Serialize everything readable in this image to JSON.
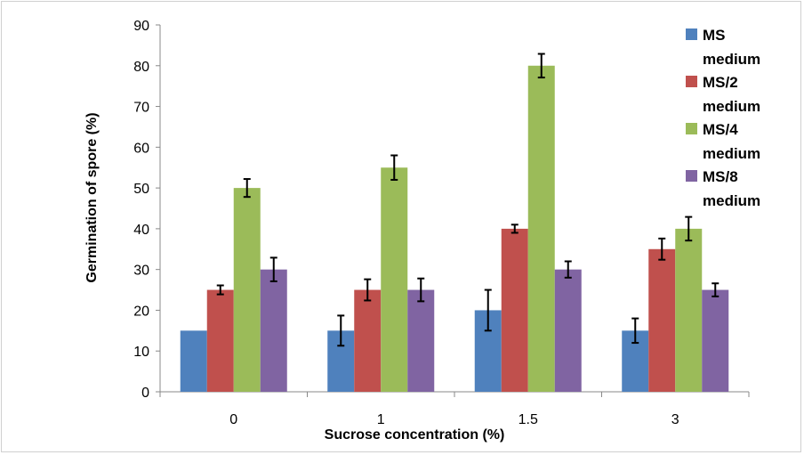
{
  "chart_data": {
    "type": "bar",
    "title": "",
    "xlabel": "Sucrose concentration (%)",
    "ylabel": "Germination of spore (%)",
    "categories": [
      "0",
      "1",
      "1.5",
      "3"
    ],
    "ylim": [
      0,
      90
    ],
    "yticks": [
      0,
      10,
      20,
      30,
      40,
      50,
      60,
      70,
      80,
      90
    ],
    "grid": false,
    "legend_position": "right",
    "series": [
      {
        "name": "MS medium",
        "name_lines": [
          "MS",
          "medium"
        ],
        "color": "#4F81BD",
        "values": [
          15,
          15,
          20,
          15
        ],
        "errors": [
          0,
          3.7,
          5,
          3
        ]
      },
      {
        "name": "MS/2 medium",
        "name_lines": [
          "MS/2",
          "medium"
        ],
        "color": "#C0504D",
        "values": [
          25,
          25,
          40,
          35
        ],
        "errors": [
          1.1,
          2.6,
          1,
          2.6
        ]
      },
      {
        "name": "MS/4 medium",
        "name_lines": [
          "MS/4",
          "medium"
        ],
        "color": "#9BBB59",
        "values": [
          50,
          55,
          80,
          40
        ],
        "errors": [
          2.2,
          3,
          2.9,
          2.9
        ]
      },
      {
        "name": "MS/8 medium",
        "name_lines": [
          "MS/8",
          "medium"
        ],
        "color": "#8064A2",
        "values": [
          30,
          25,
          30,
          25
        ],
        "errors": [
          2.9,
          2.8,
          2,
          1.6
        ]
      }
    ]
  }
}
